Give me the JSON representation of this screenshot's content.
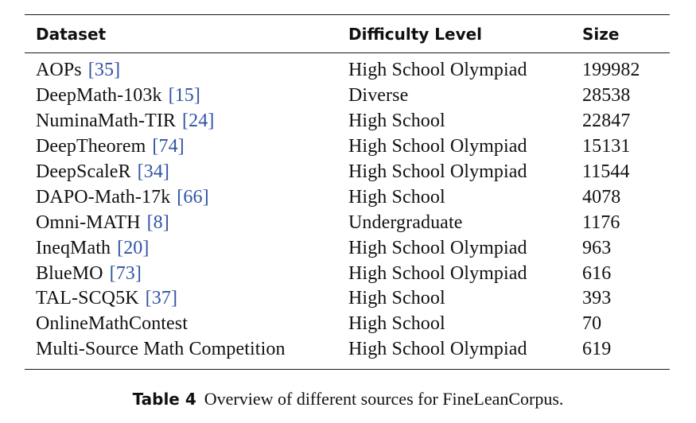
{
  "table": {
    "headers": [
      "Dataset",
      "Difficulty Level",
      "Size"
    ],
    "rows": [
      {
        "name": "AOPs",
        "ref": "35",
        "level": "High School Olympiad",
        "size": "199982"
      },
      {
        "name": "DeepMath-103k",
        "ref": "15",
        "level": "Diverse",
        "size": "28538"
      },
      {
        "name": "NuminaMath-TIR",
        "ref": "24",
        "level": "High School",
        "size": "22847"
      },
      {
        "name": "DeepTheorem",
        "ref": "74",
        "level": "High School Olympiad",
        "size": "15131"
      },
      {
        "name": "DeepScaleR",
        "ref": "34",
        "level": "High School Olympiad",
        "size": "11544"
      },
      {
        "name": "DAPO-Math-17k",
        "ref": "66",
        "level": "High School",
        "size": "4078"
      },
      {
        "name": "Omni-MATH",
        "ref": "8",
        "level": "Undergraduate",
        "size": "1176"
      },
      {
        "name": "IneqMath",
        "ref": "20",
        "level": "High School Olympiad",
        "size": "963"
      },
      {
        "name": "BlueMO",
        "ref": "73",
        "level": "High School Olympiad",
        "size": "616"
      },
      {
        "name": "TAL-SCQ5K",
        "ref": "37",
        "level": "High School",
        "size": "393"
      },
      {
        "name": "OnlineMathContest",
        "ref": "",
        "level": "High School",
        "size": "70"
      },
      {
        "name": "Multi-Source Math Competition",
        "ref": "",
        "level": "High School Olympiad",
        "size": "619"
      }
    ]
  },
  "caption": {
    "label": "Table 4",
    "text": "Overview of different sources for FineLeanCorpus."
  },
  "colors": {
    "citation": "#2f53a4",
    "text": "#111111"
  }
}
